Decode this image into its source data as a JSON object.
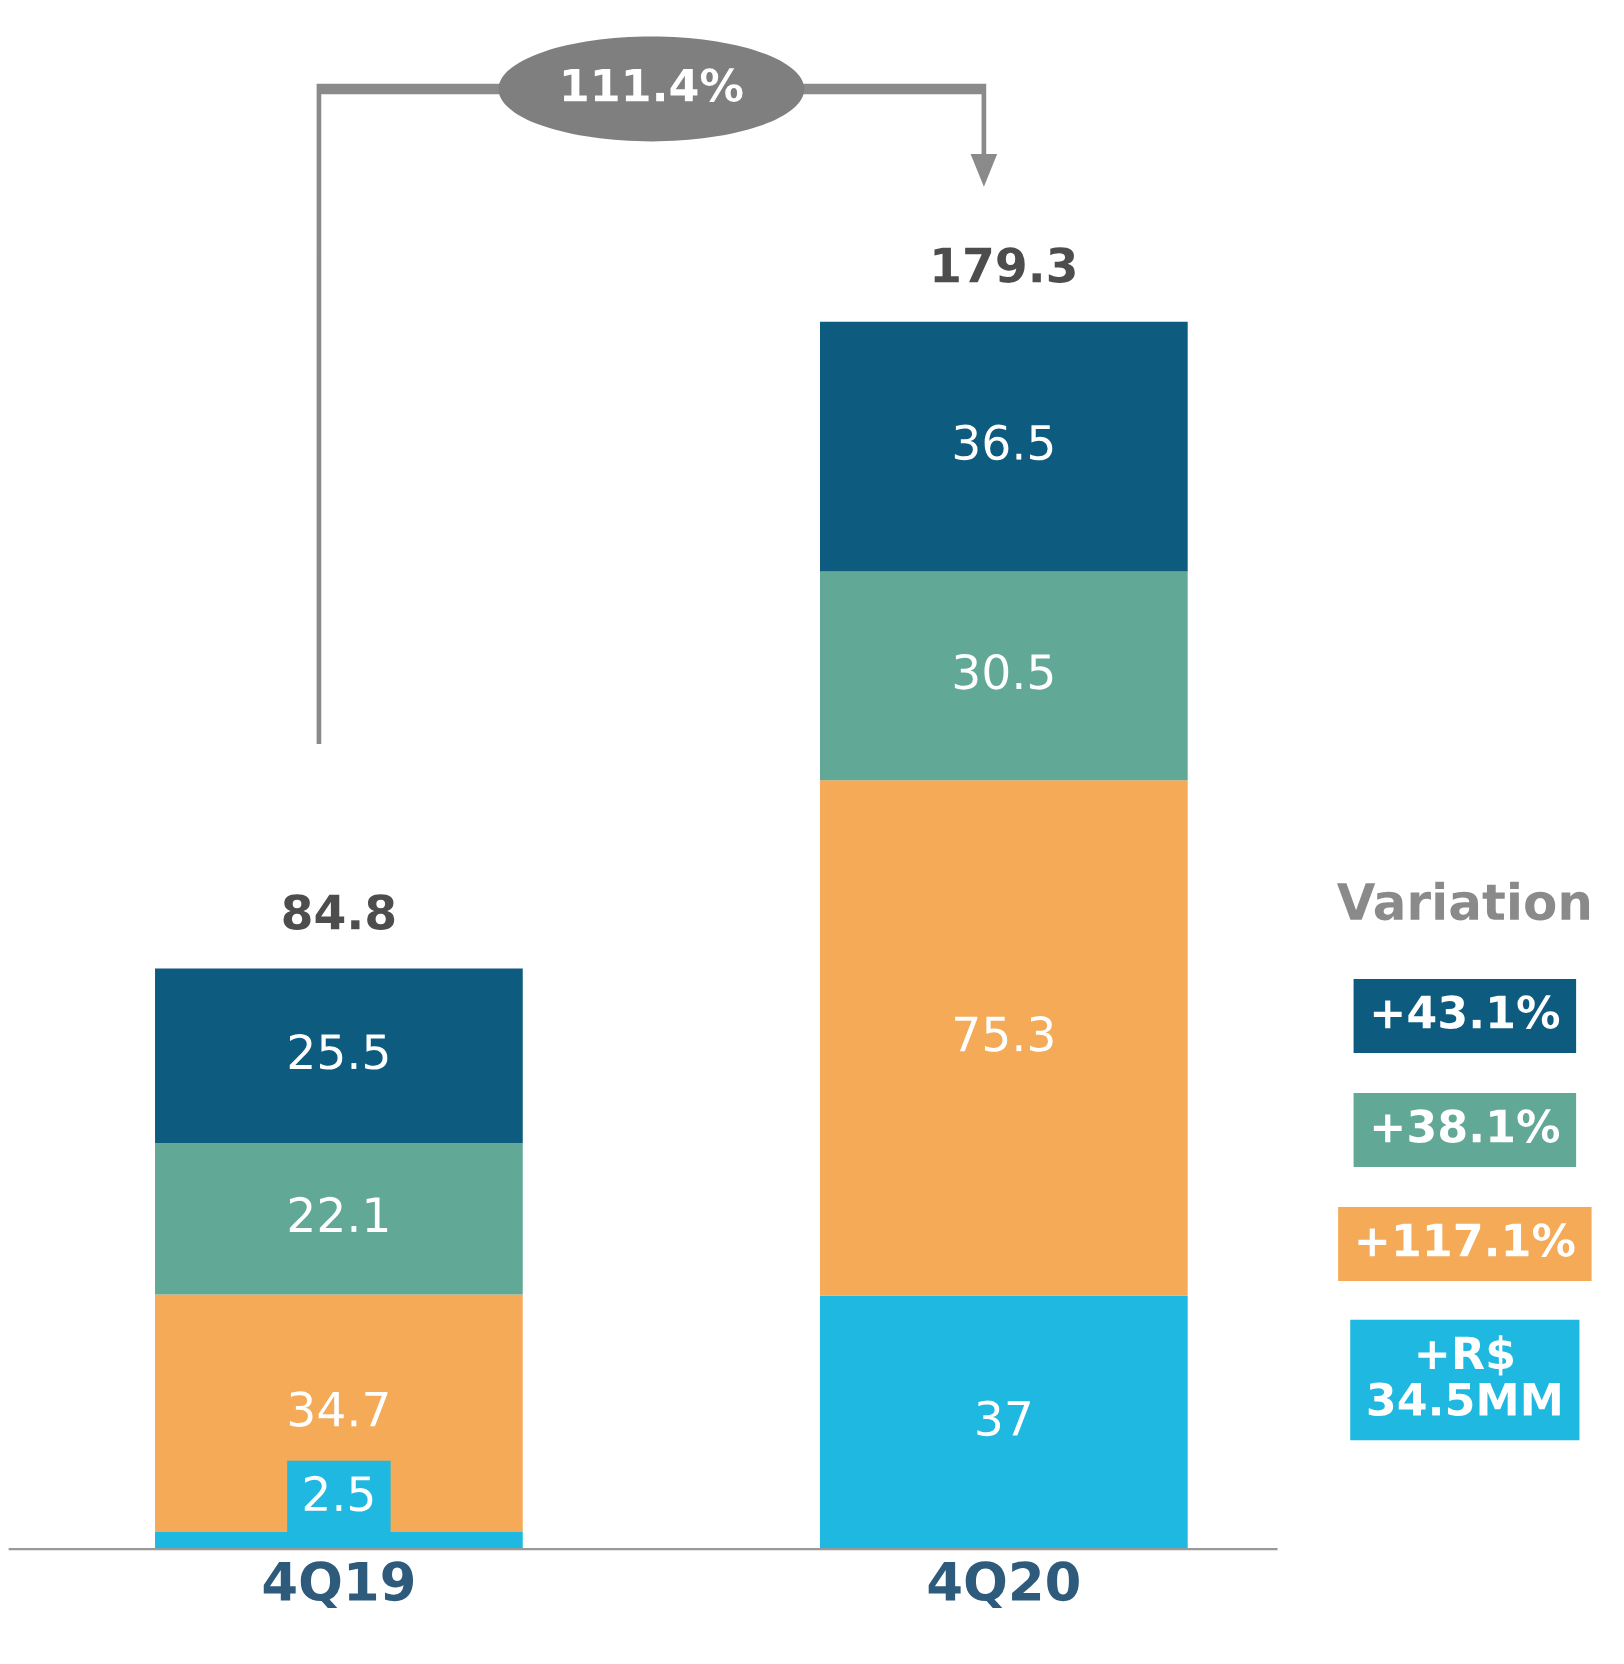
{
  "chart_data": {
    "type": "bar",
    "stacked": true,
    "categories": [
      "4Q19",
      "4Q20"
    ],
    "series": [
      {
        "color": "#1eb8e0",
        "values": [
          2.5,
          37
        ]
      },
      {
        "color": "#f5aa57",
        "values": [
          34.7,
          75.3
        ]
      },
      {
        "color": "#62a897",
        "values": [
          22.1,
          30.5
        ]
      },
      {
        "color": "#0d5c80",
        "values": [
          25.5,
          36.5
        ]
      }
    ],
    "data_labels": true,
    "totals": [
      "84.8",
      "179.3"
    ],
    "annotations": [
      "111.4%",
      "Variation",
      "+43.1%",
      "+38.1%",
      "+117.1%",
      "+R$\n34.5MM"
    ],
    "grid": false,
    "legend": false
  }
}
